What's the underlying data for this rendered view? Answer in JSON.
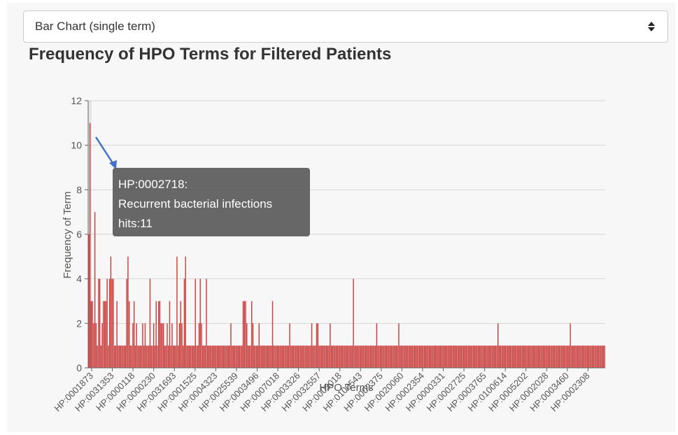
{
  "selector": {
    "value": "Bar Chart (single term)",
    "icon": "sort-arrows-icon"
  },
  "chart_data": {
    "type": "bar",
    "title": "Frequency of HPO Terms for Filtered Patients",
    "xlabel": "HPO Terms",
    "ylabel": "Frequency of Term",
    "ylim": [
      0,
      12
    ],
    "yticks": [
      0,
      2,
      4,
      6,
      8,
      10,
      12
    ],
    "grid": true,
    "bar_color": "#c9413f",
    "x_tick_labels": [
      "HP:0001873",
      "HP:0031353",
      "HP:0000118",
      "HP:0000230",
      "HP:0031693",
      "HP:0001525",
      "HP:0004323",
      "HP:0025539",
      "HP:0003496",
      "HP:0007018",
      "HP:0003326",
      "HP:0032557",
      "HP:0003018",
      "HP:0100543",
      "HP:0002375",
      "HP:0020060",
      "HP:0002354",
      "HP:0000331",
      "HP:0002725",
      "HP:0003765",
      "HP:0100614",
      "HP:0005202",
      "HP:0002028",
      "HP:0003460",
      "HP:0002308"
    ],
    "values": [
      6,
      11,
      3,
      3,
      2,
      7,
      2,
      1,
      4,
      4,
      1,
      2,
      3,
      3,
      3,
      4,
      1,
      4,
      5,
      4,
      4,
      1,
      1,
      3,
      1,
      1,
      1,
      1,
      1,
      1,
      1,
      4,
      5,
      3,
      1,
      1,
      2,
      3,
      1,
      2,
      1,
      1,
      1,
      1,
      2,
      1,
      2,
      1,
      1,
      1,
      4,
      1,
      1,
      2,
      1,
      3,
      1,
      3,
      3,
      2,
      2,
      2,
      1,
      1,
      2,
      1,
      3,
      1,
      2,
      1,
      1,
      1,
      5,
      1,
      2,
      3,
      2,
      1,
      4,
      5,
      1,
      1,
      1,
      1,
      1,
      1,
      1,
      4,
      1,
      1,
      2,
      4,
      2,
      1,
      1,
      1,
      4,
      1,
      1,
      1,
      1,
      1,
      1,
      1,
      1,
      1,
      1,
      1,
      1,
      1,
      1,
      1,
      1,
      1,
      1,
      1,
      2,
      1,
      1,
      1,
      1,
      1,
      1,
      1,
      1,
      1,
      3,
      3,
      3,
      2,
      1,
      1,
      1,
      3,
      2,
      1,
      1,
      1,
      1,
      2,
      1,
      1,
      1,
      1,
      1,
      1,
      1,
      1,
      1,
      1,
      3,
      1,
      1,
      1,
      1,
      1,
      1,
      1,
      1,
      1,
      1,
      1,
      1,
      1,
      2,
      1,
      1,
      1,
      1,
      1,
      1,
      1,
      1,
      1,
      1,
      1,
      1,
      1,
      1,
      1,
      1,
      1,
      2,
      1,
      1,
      1,
      2,
      2,
      1,
      1,
      1,
      1,
      1,
      1,
      1,
      1,
      1,
      2,
      1,
      1,
      1,
      1,
      1,
      1,
      1,
      1,
      1,
      1,
      1,
      1,
      1,
      1,
      1,
      1,
      1,
      1,
      4,
      1,
      1,
      1,
      1,
      1,
      1,
      1,
      1,
      1,
      1,
      1,
      1,
      1,
      1,
      1,
      1,
      1,
      1,
      2,
      1,
      1,
      1,
      1,
      1,
      1,
      1,
      1,
      1,
      1,
      1,
      1,
      1,
      1,
      1,
      1,
      1,
      2,
      1,
      1,
      1,
      1,
      1,
      1,
      1,
      1,
      1,
      1,
      1,
      1,
      1,
      1,
      1,
      1,
      1,
      1,
      1,
      1,
      1,
      1,
      1,
      1,
      1,
      1,
      1,
      1,
      1,
      1,
      1,
      1,
      1,
      1,
      1,
      1,
      1,
      1,
      1,
      1,
      1,
      1,
      1,
      1,
      1,
      1,
      1,
      1,
      1,
      1,
      1,
      1,
      1,
      1,
      1,
      1,
      1,
      1,
      1,
      1,
      1,
      1,
      1,
      1,
      1,
      1,
      1,
      1,
      1,
      1,
      1,
      1,
      1,
      1,
      1,
      1,
      1,
      1,
      1,
      1,
      2,
      1,
      1,
      1,
      1,
      1,
      1,
      1,
      1,
      1,
      1,
      1,
      1,
      1,
      1,
      1,
      1,
      1,
      1,
      1,
      1,
      1,
      1,
      1,
      1,
      1,
      1,
      1,
      1,
      1,
      1,
      1,
      1,
      1,
      1,
      1,
      1,
      1,
      1,
      1,
      1,
      1,
      1,
      1,
      1,
      1,
      1,
      1,
      1,
      1,
      1,
      1,
      1,
      1,
      1,
      1,
      1,
      1,
      1,
      2,
      1,
      1,
      1,
      1,
      1,
      1,
      1,
      1,
      1,
      1,
      1,
      1,
      1,
      1,
      1,
      1,
      1,
      1,
      1,
      1,
      1,
      1,
      1,
      1,
      1,
      1,
      1,
      1
    ],
    "tooltip": {
      "term": "HP:0002718:",
      "description": "Recurrent bacterial infections",
      "hits": "hits:11"
    }
  }
}
